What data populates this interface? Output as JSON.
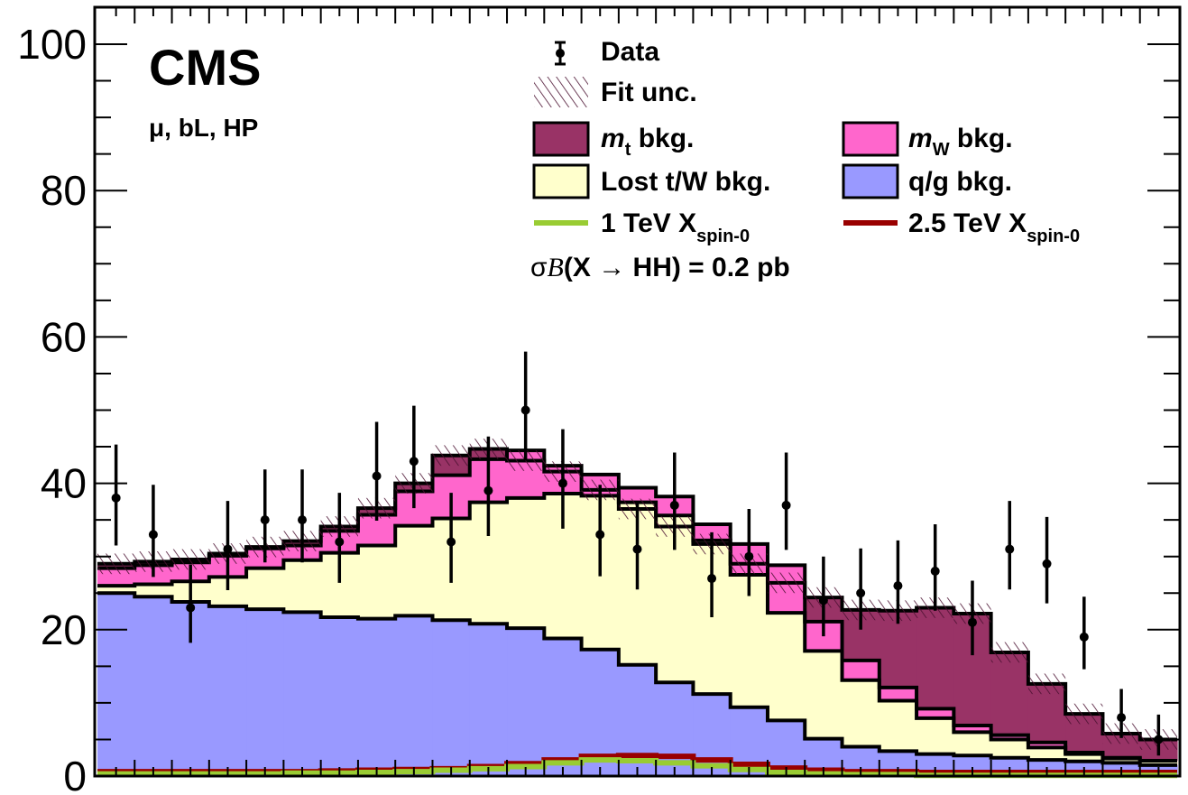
{
  "chart_data": {
    "type": "stacked-histogram",
    "experiment_label": "CMS",
    "category_label": "μ, bL, HP",
    "xlim": [
      0,
      29
    ],
    "ylim": [
      0,
      105
    ],
    "yticks": [
      "0",
      "20",
      "40",
      "60",
      "80",
      "100"
    ],
    "colors": {
      "qg": "#9999ff",
      "lost": "#ffffcc",
      "mW": "#ff66cc",
      "mt": "#993366",
      "sig1": "#99cc33",
      "sig25": "#990000"
    },
    "legend": {
      "data": "Data",
      "fit_unc": "Fit unc.",
      "mt_main": "m",
      "mt_sub": "t",
      "mt_rest": " bkg.",
      "mw_main": "m",
      "mw_sub": "W",
      "mw_rest": " bkg.",
      "lost": "Lost t/W bkg.",
      "qg": "q/g bkg.",
      "sig1_main": "1 TeV X",
      "sig1_sub": "spin-0",
      "sig25_main": "2.5 TeV X",
      "sig25_sub": "spin-0",
      "xsec_sigma": "σ",
      "xsec_b": "B",
      "xsec_open": "(X ",
      "xsec_arrow": "→",
      "xsec_rest": " HH) = 0.2 pb"
    },
    "stack": {
      "qg_top": [
        25,
        24.5,
        23.8,
        23.2,
        22.8,
        22.4,
        21.7,
        21.5,
        21.9,
        21.3,
        20.8,
        20.2,
        18.8,
        17.3,
        15.2,
        12.8,
        11.2,
        9.4,
        7.6,
        5.1,
        4.0,
        3.4,
        3.0,
        2.8,
        2.5,
        2.2,
        2.0,
        1.8,
        1.5
      ],
      "lost_top": [
        26,
        26.2,
        26.6,
        27.2,
        28.4,
        29.5,
        30.5,
        31.5,
        34.2,
        35.2,
        37.4,
        38.0,
        38.6,
        38.3,
        37.4,
        35.6,
        32.2,
        27.5,
        22.3,
        17.1,
        13.1,
        10.3,
        7.9,
        6.0,
        5.0,
        3.9,
        3.0,
        2.4,
        2.1
      ],
      "mW_top": [
        28.4,
        28.8,
        29.2,
        30.1,
        31.1,
        31.5,
        33.5,
        35.7,
        38.9,
        41.1,
        43.3,
        44.5,
        42.4,
        41.2,
        39.4,
        38.2,
        34.4,
        31.7,
        28.8,
        21.1,
        15.8,
        12.1,
        9.2,
        6.9,
        5.6,
        4.6,
        3.2,
        2.5,
        2.1
      ],
      "total": [
        29,
        29.3,
        29.6,
        30.4,
        31.3,
        32.1,
        34.1,
        36.6,
        40.0,
        43.8,
        44.7,
        43.1,
        41.6,
        39.1,
        36.5,
        34.1,
        31.7,
        29.0,
        26.4,
        24.4,
        22.7,
        22.6,
        23.0,
        22.2,
        16.9,
        12.6,
        8.5,
        5.8,
        5.0
      ]
    },
    "fit_unc": 1.4,
    "signal": {
      "sig1_tev": [
        0.3,
        0.3,
        0.3,
        0.3,
        0.3,
        0.4,
        0.4,
        0.5,
        0.6,
        0.8,
        1.0,
        1.3,
        1.8,
        2.2,
        2.1,
        1.8,
        1.4,
        0.9,
        0.5,
        0.3,
        0.2,
        0.2,
        0.1,
        0.1,
        0.1,
        0.1,
        0.1,
        0.1,
        0.1
      ],
      "sig2p5_tev": [
        0.6,
        0.6,
        0.6,
        0.6,
        0.6,
        0.6,
        0.7,
        0.8,
        0.9,
        1.0,
        1.3,
        1.7,
        2.2,
        2.7,
        2.8,
        2.7,
        2.2,
        1.6,
        1.1,
        0.8,
        0.6,
        0.6,
        0.5,
        0.5,
        0.5,
        0.5,
        0.5,
        0.5,
        0.5
      ]
    },
    "data_points": [
      {
        "x": 0.5,
        "y": 38,
        "lo": 31.5,
        "hi": 45.3
      },
      {
        "x": 1.5,
        "y": 33,
        "lo": 27.2,
        "hi": 39.8
      },
      {
        "x": 2.5,
        "y": 23,
        "lo": 18.2,
        "hi": 28.9
      },
      {
        "x": 3.5,
        "y": 31,
        "lo": 25.4,
        "hi": 37.6
      },
      {
        "x": 4.5,
        "y": 35,
        "lo": 29.2,
        "hi": 41.9
      },
      {
        "x": 5.5,
        "y": 35,
        "lo": 29.2,
        "hi": 41.9
      },
      {
        "x": 6.5,
        "y": 32,
        "lo": 26.4,
        "hi": 38.7
      },
      {
        "x": 7.5,
        "y": 41,
        "lo": 34.9,
        "hi": 48.4
      },
      {
        "x": 8.5,
        "y": 43,
        "lo": 36.6,
        "hi": 50.6
      },
      {
        "x": 9.5,
        "y": 32,
        "lo": 26.4,
        "hi": 38.7
      },
      {
        "x": 10.5,
        "y": 39,
        "lo": 32.8,
        "hi": 46.4
      },
      {
        "x": 11.5,
        "y": 50,
        "lo": 43.1,
        "hi": 58.0
      },
      {
        "x": 12.5,
        "y": 40,
        "lo": 33.8,
        "hi": 47.4
      },
      {
        "x": 13.5,
        "y": 33,
        "lo": 27.3,
        "hi": 39.8
      },
      {
        "x": 14.5,
        "y": 31,
        "lo": 25.5,
        "hi": 37.6
      },
      {
        "x": 15.5,
        "y": 37,
        "lo": 30.9,
        "hi": 44.2
      },
      {
        "x": 16.5,
        "y": 27,
        "lo": 21.7,
        "hi": 33.3
      },
      {
        "x": 17.5,
        "y": 30,
        "lo": 24.6,
        "hi": 36.5
      },
      {
        "x": 18.5,
        "y": 37,
        "lo": 30.9,
        "hi": 44.2
      },
      {
        "x": 19.5,
        "y": 24,
        "lo": 19.1,
        "hi": 30.0
      },
      {
        "x": 20.5,
        "y": 25,
        "lo": 20.0,
        "hi": 31.1
      },
      {
        "x": 21.5,
        "y": 26,
        "lo": 20.8,
        "hi": 32.2
      },
      {
        "x": 22.5,
        "y": 28,
        "lo": 22.6,
        "hi": 34.4
      },
      {
        "x": 23.5,
        "y": 21,
        "lo": 16.5,
        "hi": 26.7
      },
      {
        "x": 24.5,
        "y": 31,
        "lo": 25.5,
        "hi": 37.6
      },
      {
        "x": 25.5,
        "y": 29,
        "lo": 23.6,
        "hi": 35.4
      },
      {
        "x": 26.5,
        "y": 19,
        "lo": 14.6,
        "hi": 24.5
      },
      {
        "x": 27.5,
        "y": 8,
        "lo": 5.2,
        "hi": 11.9
      },
      {
        "x": 28.5,
        "y": 5,
        "lo": 2.8,
        "hi": 8.4
      }
    ]
  }
}
